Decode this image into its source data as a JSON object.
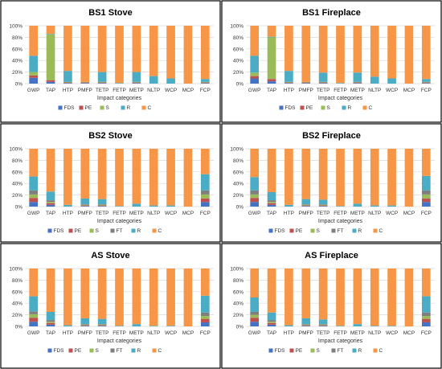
{
  "categories": [
    "GWP",
    "TAP",
    "HTP",
    "PMFP",
    "TETP",
    "FETP",
    "METP",
    "NLTP",
    "WCP",
    "MCP",
    "FCP"
  ],
  "y_ticks": [
    "0%",
    "20%",
    "40%",
    "60%",
    "80%",
    "100%"
  ],
  "colors": {
    "FDS": "#4472C4",
    "PE": "#C0504D",
    "S": "#9BBB59",
    "FT": "#7F7F7F",
    "R": "#4BACC6",
    "C": "#F79646"
  },
  "chart_data": [
    {
      "type": "bar",
      "stacked": "percent",
      "title": "BS1 Stove",
      "xlabel": "Impact categories",
      "ylabel": "",
      "ylim": [
        0,
        100
      ],
      "legend_position": "bottom",
      "categories": [
        "GWP",
        "TAP",
        "HTP",
        "PMFP",
        "TETP",
        "FETP",
        "METP",
        "NLTP",
        "WCP",
        "MCP",
        "FCP"
      ],
      "series": [
        {
          "name": "FDS",
          "values": [
            10,
            3,
            1,
            1,
            1,
            0,
            1,
            0,
            0,
            0,
            1
          ]
        },
        {
          "name": "PE",
          "values": [
            4,
            3,
            1,
            1,
            1,
            0,
            1,
            0,
            0,
            0,
            1
          ]
        },
        {
          "name": "S",
          "values": [
            6,
            79,
            1,
            1,
            1,
            0,
            1,
            0,
            0,
            0,
            1
          ]
        },
        {
          "name": "R",
          "values": [
            28,
            1,
            19,
            0,
            17,
            1,
            17,
            13,
            9,
            0,
            5
          ]
        },
        {
          "name": "C",
          "values": [
            52,
            14,
            78,
            97,
            80,
            99,
            80,
            87,
            91,
            100,
            92
          ]
        }
      ]
    },
    {
      "type": "bar",
      "stacked": "percent",
      "title": "BS1 Fireplace",
      "xlabel": "Impact categories",
      "ylabel": "",
      "ylim": [
        0,
        100
      ],
      "legend_position": "bottom",
      "categories": [
        "GWP",
        "TAP",
        "HTP",
        "PMFP",
        "TETP",
        "FETP",
        "METP",
        "NLTP",
        "WCP",
        "MCP",
        "FCP"
      ],
      "series": [
        {
          "name": "FDS",
          "values": [
            9,
            4,
            1,
            1,
            1,
            0,
            1,
            0,
            0,
            0,
            1
          ]
        },
        {
          "name": "PE",
          "values": [
            4,
            4,
            1,
            1,
            1,
            0,
            1,
            0,
            0,
            0,
            1
          ]
        },
        {
          "name": "S",
          "values": [
            6,
            72,
            1,
            1,
            1,
            0,
            1,
            0,
            0,
            0,
            1
          ]
        },
        {
          "name": "R",
          "values": [
            29,
            1,
            19,
            0,
            16,
            1,
            16,
            12,
            9,
            0,
            5
          ]
        },
        {
          "name": "C",
          "values": [
            52,
            19,
            78,
            97,
            81,
            99,
            81,
            88,
            91,
            100,
            92
          ]
        }
      ]
    },
    {
      "type": "bar",
      "stacked": "percent",
      "title": "BS2 Stove",
      "xlabel": "Impact categories",
      "ylabel": "",
      "ylim": [
        0,
        100
      ],
      "legend_position": "bottom",
      "categories": [
        "GWP",
        "TAP",
        "HTP",
        "PMFP",
        "TETP",
        "FETP",
        "METP",
        "NLTP",
        "WCP",
        "MCP",
        "FCP"
      ],
      "series": [
        {
          "name": "FDS",
          "values": [
            8,
            3,
            0,
            1,
            1,
            0,
            0,
            0,
            0,
            0,
            8
          ]
        },
        {
          "name": "PE",
          "values": [
            7,
            3,
            0,
            1,
            1,
            0,
            0,
            0,
            0,
            0,
            6
          ]
        },
        {
          "name": "S",
          "values": [
            6,
            2,
            0,
            1,
            1,
            0,
            0,
            0,
            0,
            0,
            7
          ]
        },
        {
          "name": "FT",
          "values": [
            7,
            3,
            0,
            1,
            1,
            0,
            0,
            0,
            0,
            0,
            7
          ]
        },
        {
          "name": "R",
          "values": [
            24,
            15,
            3,
            10,
            9,
            1,
            5,
            2,
            2,
            0,
            28
          ]
        },
        {
          "name": "C",
          "values": [
            48,
            74,
            97,
            86,
            87,
            99,
            95,
            98,
            98,
            100,
            44
          ]
        }
      ]
    },
    {
      "type": "bar",
      "stacked": "percent",
      "title": "BS2 Fireplace",
      "xlabel": "Impact categories",
      "ylabel": "",
      "ylim": [
        0,
        100
      ],
      "legend_position": "bottom",
      "categories": [
        "GWP",
        "TAP",
        "HTP",
        "PMFP",
        "TETP",
        "FETP",
        "METP",
        "NLTP",
        "WCP",
        "MCP",
        "FCP"
      ],
      "series": [
        {
          "name": "FDS",
          "values": [
            8,
            3,
            0,
            1,
            1,
            0,
            0,
            0,
            0,
            0,
            8
          ]
        },
        {
          "name": "PE",
          "values": [
            7,
            3,
            0,
            1,
            1,
            0,
            0,
            0,
            0,
            0,
            6
          ]
        },
        {
          "name": "S",
          "values": [
            6,
            2,
            0,
            1,
            1,
            0,
            0,
            0,
            0,
            0,
            7
          ]
        },
        {
          "name": "FT",
          "values": [
            7,
            3,
            0,
            1,
            1,
            0,
            0,
            0,
            0,
            0,
            7
          ]
        },
        {
          "name": "R",
          "values": [
            23,
            14,
            3,
            9,
            8,
            1,
            5,
            2,
            2,
            0,
            25
          ]
        },
        {
          "name": "C",
          "values": [
            49,
            75,
            97,
            87,
            88,
            99,
            95,
            98,
            98,
            100,
            47
          ]
        }
      ]
    },
    {
      "type": "bar",
      "stacked": "percent",
      "title": "AS Stove",
      "xlabel": "Impact categories",
      "ylabel": "",
      "ylim": [
        0,
        100
      ],
      "legend_position": "bottom",
      "categories": [
        "GWP",
        "TAP",
        "HTP",
        "PMFP",
        "TETP",
        "FETP",
        "METP",
        "NLTP",
        "WCP",
        "MCP",
        "FCP"
      ],
      "series": [
        {
          "name": "FDS",
          "values": [
            8,
            3,
            0,
            1,
            1,
            0,
            0,
            0,
            0,
            0,
            7
          ]
        },
        {
          "name": "PE",
          "values": [
            7,
            3,
            0,
            1,
            1,
            0,
            0,
            0,
            0,
            0,
            6
          ]
        },
        {
          "name": "S",
          "values": [
            6,
            2,
            0,
            1,
            1,
            0,
            0,
            0,
            0,
            0,
            5
          ]
        },
        {
          "name": "FT",
          "values": [
            5,
            3,
            0,
            1,
            1,
            0,
            0,
            0,
            0,
            0,
            6
          ]
        },
        {
          "name": "R",
          "values": [
            26,
            14,
            2,
            10,
            9,
            1,
            4,
            1,
            1,
            0,
            29
          ]
        },
        {
          "name": "C",
          "values": [
            48,
            75,
            98,
            86,
            87,
            99,
            96,
            99,
            99,
            100,
            47
          ]
        }
      ]
    },
    {
      "type": "bar",
      "stacked": "percent",
      "title": "AS Fireplace",
      "xlabel": "Impact categories",
      "ylabel": "",
      "ylim": [
        0,
        100
      ],
      "legend_position": "bottom",
      "categories": [
        "GWP",
        "TAP",
        "HTP",
        "PMFP",
        "TETP",
        "FETP",
        "METP",
        "NLTP",
        "WCP",
        "MCP",
        "FCP"
      ],
      "series": [
        {
          "name": "FDS",
          "values": [
            8,
            3,
            0,
            1,
            1,
            0,
            0,
            0,
            0,
            0,
            7
          ]
        },
        {
          "name": "PE",
          "values": [
            7,
            3,
            0,
            1,
            1,
            0,
            0,
            0,
            0,
            0,
            6
          ]
        },
        {
          "name": "S",
          "values": [
            5,
            2,
            0,
            1,
            1,
            0,
            0,
            0,
            0,
            0,
            5
          ]
        },
        {
          "name": "FT",
          "values": [
            5,
            3,
            0,
            1,
            1,
            0,
            0,
            0,
            0,
            0,
            6
          ]
        },
        {
          "name": "R",
          "values": [
            25,
            13,
            2,
            10,
            8,
            1,
            4,
            1,
            1,
            0,
            28
          ]
        },
        {
          "name": "C",
          "values": [
            50,
            76,
            98,
            86,
            88,
            99,
            96,
            99,
            99,
            100,
            48
          ]
        }
      ]
    }
  ]
}
